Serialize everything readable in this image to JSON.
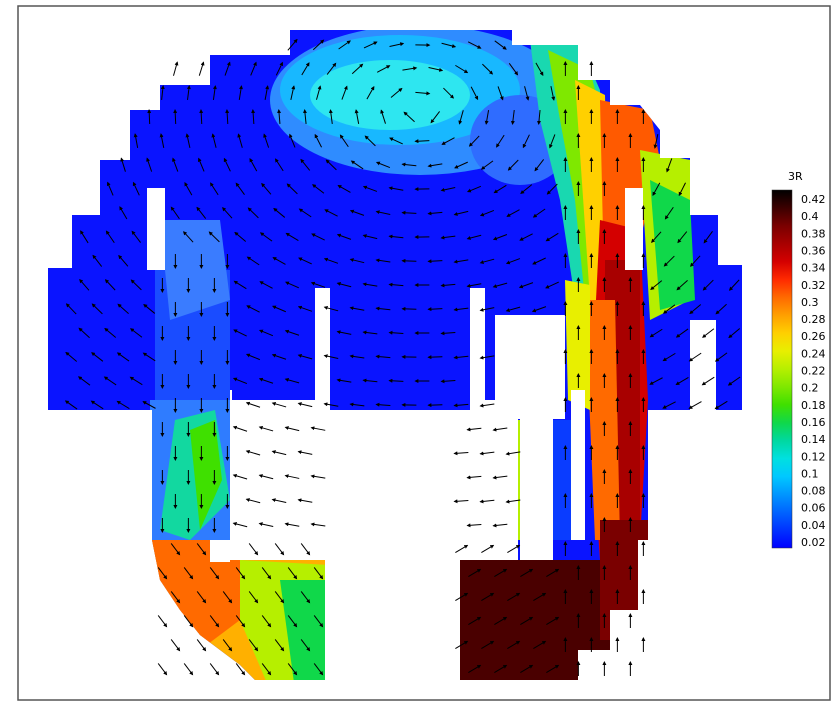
{
  "chart_data": {
    "type": "heatmap",
    "title": "",
    "colorbar": {
      "label": "3R",
      "ticks": [
        "0.42",
        "0.4",
        "0.38",
        "0.36",
        "0.34",
        "0.32",
        "0.3",
        "0.28",
        "0.26",
        "0.24",
        "0.22",
        "0.2",
        "0.18",
        "0.16",
        "0.14",
        "0.12",
        "0.1",
        "0.08",
        "0.06",
        "0.04",
        "0.02"
      ],
      "colors": [
        "#000000",
        "#3c0000",
        "#7a0000",
        "#a80000",
        "#d40000",
        "#ff2a00",
        "#ff6a00",
        "#ffa000",
        "#ffd000",
        "#e8ef00",
        "#b6ef00",
        "#7fe800",
        "#3fe000",
        "#10d84a",
        "#00d8a0",
        "#00e0e0",
        "#00c8ff",
        "#0096ff",
        "#0064ff",
        "#0032ff",
        "#0000ff"
      ]
    },
    "field_description": "vector field with contoured scalar 3R over a cross-sectional domain",
    "grid": false,
    "legend_placement": "right"
  }
}
